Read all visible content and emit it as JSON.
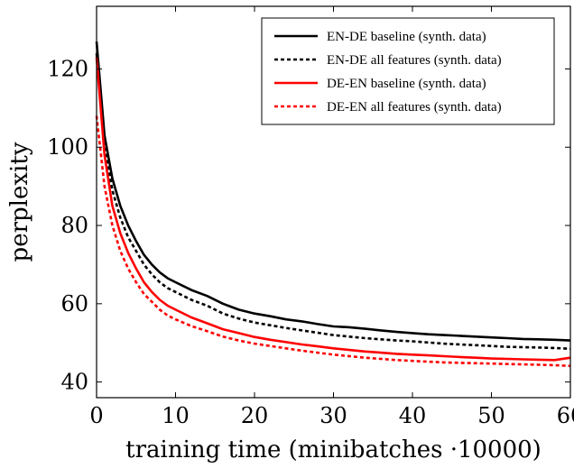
{
  "chart_data": {
    "type": "line",
    "title": "",
    "xlabel": "training time (minibatches ·10000)",
    "ylabel": "perplexity",
    "xlim": [
      0,
      60
    ],
    "ylim": [
      36,
      136
    ],
    "xticks": [
      0,
      10,
      20,
      30,
      40,
      50,
      60
    ],
    "xtick_labels": [
      "0",
      "10",
      "20",
      "30",
      "40",
      "50",
      "60"
    ],
    "yticks": [
      40,
      60,
      80,
      100,
      120
    ],
    "ytick_labels": [
      "40",
      "60",
      "80",
      "100",
      "120"
    ],
    "grid": false,
    "legend_position": "top-right",
    "x": [
      0,
      1,
      2,
      3,
      4,
      5,
      6,
      7,
      8,
      9,
      10,
      12,
      14,
      16,
      18,
      20,
      22,
      24,
      26,
      28,
      30,
      32,
      34,
      36,
      38,
      40,
      42,
      44,
      46,
      48,
      50,
      52,
      54,
      56,
      58,
      60
    ],
    "series": [
      {
        "name": "EN-DE baseline (synth. data)",
        "color": "#000000",
        "dashed": false,
        "values": [
          127,
          103,
          92,
          85,
          80,
          76,
          72.5,
          70,
          68,
          66.5,
          65.5,
          63.5,
          62,
          60,
          58.5,
          57.5,
          56.8,
          56,
          55.5,
          54.8,
          54.2,
          54,
          53.6,
          53.2,
          52.8,
          52.5,
          52.2,
          52,
          51.8,
          51.6,
          51.4,
          51.2,
          51,
          50.9,
          50.8,
          50.6
        ]
      },
      {
        "name": "EN-DE all features (synth. data)",
        "color": "#000000",
        "dashed": true,
        "values": [
          124,
          100,
          89,
          82,
          77,
          73.5,
          70,
          67.5,
          65.5,
          64,
          63,
          61,
          59.5,
          57.5,
          56.2,
          55.2,
          54.5,
          53.8,
          53.2,
          52.6,
          52,
          51.6,
          51.2,
          50.9,
          50.6,
          50.4,
          50.1,
          49.8,
          49.6,
          49.4,
          49.2,
          49,
          48.9,
          48.8,
          48.7,
          48.5
        ]
      },
      {
        "name": "DE-EN baseline (synth. data)",
        "color": "#ff0000",
        "dashed": false,
        "values": [
          123,
          98,
          85,
          78,
          73,
          69,
          65.5,
          63,
          61,
          59.5,
          58.5,
          56.5,
          55,
          53.5,
          52.5,
          51.5,
          50.8,
          50.2,
          49.6,
          49.1,
          48.6,
          48.2,
          47.8,
          47.5,
          47.2,
          47,
          46.8,
          46.6,
          46.4,
          46.2,
          46,
          45.9,
          45.8,
          45.7,
          45.6,
          46.2
        ]
      },
      {
        "name": "DE-EN all features (synth. data)",
        "color": "#ff0000",
        "dashed": true,
        "values": [
          108,
          90,
          80,
          73.5,
          69,
          65.5,
          62.5,
          60.5,
          58.5,
          57,
          56,
          54.3,
          53,
          51.6,
          50.6,
          49.8,
          49.2,
          48.6,
          48,
          47.5,
          47,
          46.6,
          46.2,
          45.9,
          45.6,
          45.4,
          45.2,
          45,
          44.9,
          44.8,
          44.7,
          44.6,
          44.5,
          44.4,
          44.3,
          44.1
        ]
      }
    ]
  }
}
